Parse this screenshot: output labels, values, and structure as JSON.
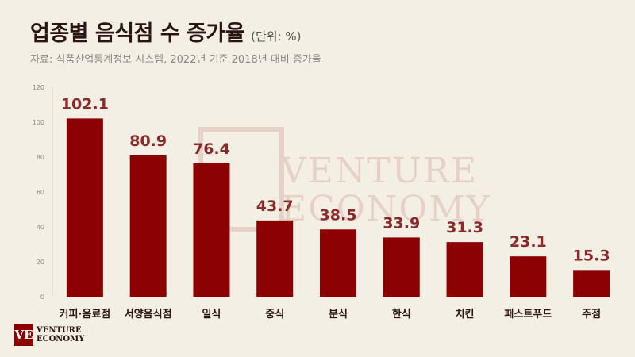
{
  "header": {
    "title": "업종별 음식점 수 증가율",
    "unit": "(단위: %)",
    "subtitle": "자료: 식품산업통계정보 시스템, 2022년 기준 2018년 대비 증가율"
  },
  "watermark": {
    "line1": "VENTURE",
    "line2": "ECONOMY"
  },
  "logo": {
    "mark": "VE",
    "line1": "VENTURE",
    "line2": "ECONOMY"
  },
  "chart_data": {
    "type": "bar",
    "categories": [
      "커피·음료점",
      "서양음식점",
      "일식",
      "중식",
      "분식",
      "한식",
      "치킨",
      "패스트푸드",
      "주점"
    ],
    "values": [
      102.1,
      80.9,
      76.4,
      43.7,
      38.5,
      33.9,
      31.3,
      23.1,
      15.3
    ],
    "value_labels": [
      "102.1",
      "80.9",
      "76.4",
      "43.7",
      "38.5",
      "33.9",
      "31.3",
      "23.1",
      "15.3"
    ],
    "ylim": [
      0,
      120
    ],
    "yticks": [
      0,
      20,
      40,
      60,
      80,
      100,
      120
    ],
    "grid": false,
    "bar_color": "#8b0000",
    "label_color": "#8b2a2a"
  }
}
